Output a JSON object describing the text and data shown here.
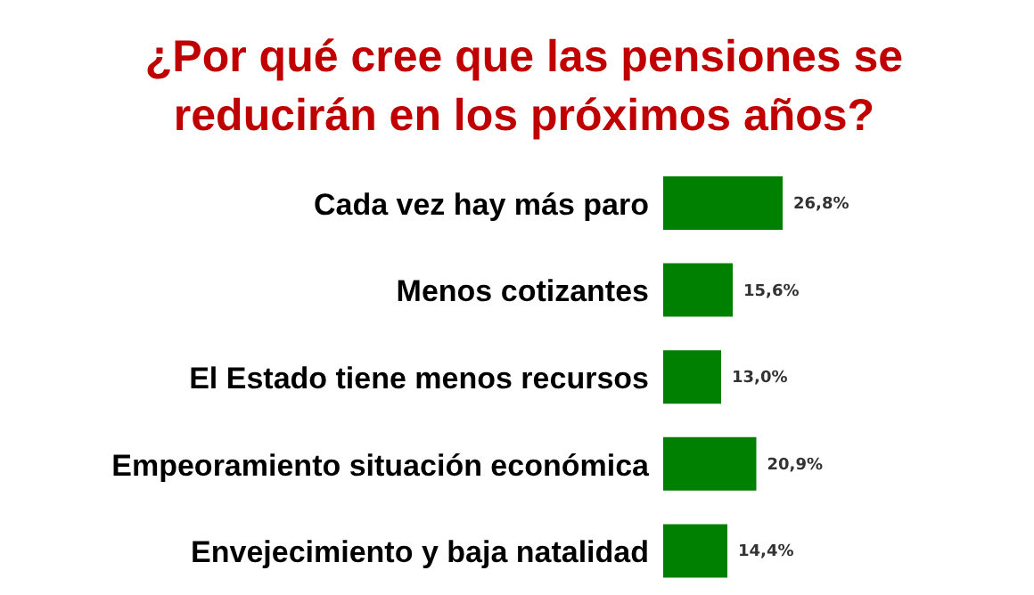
{
  "chart_data": {
    "type": "bar",
    "orientation": "horizontal",
    "title": "¿Por qué cree que las pensiones se reducirán en los próximos años?",
    "categories": [
      "Cada vez hay más paro",
      "Menos cotizantes",
      "El Estado tiene menos recursos",
      "Empeoramiento situación económica",
      "Envejecimiento y baja natalidad"
    ],
    "values": [
      26.8,
      15.6,
      13.0,
      20.9,
      14.4
    ],
    "value_labels": [
      "26,8%",
      "15,6%",
      "13,0%",
      "20,9%",
      "14,4%"
    ],
    "color": "#008000"
  }
}
